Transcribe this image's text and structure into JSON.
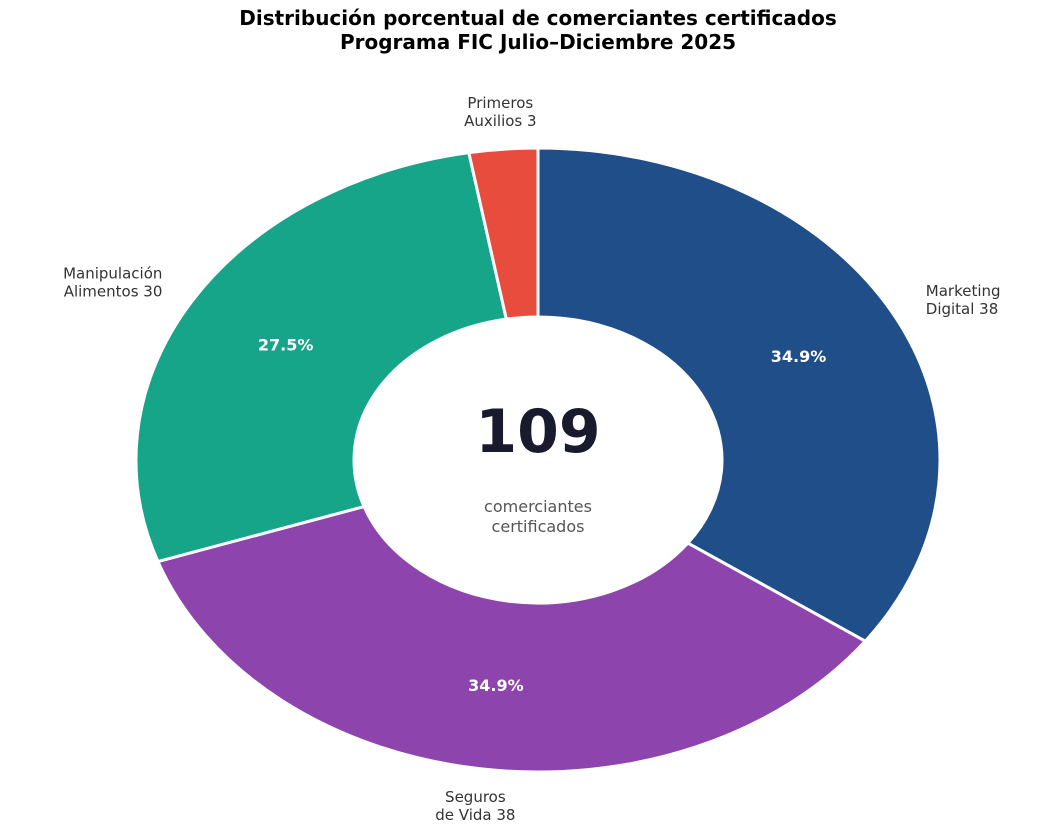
{
  "chart_data": {
    "type": "pie",
    "variant": "donut",
    "title_lines": [
      "Distribución porcentual de comerciantes certificados",
      "Programa FIC Julio–Diciembre 2025"
    ],
    "center": {
      "total": "109",
      "caption_lines": [
        "comerciantes",
        "certificados"
      ]
    },
    "slices": [
      {
        "category": "Marketing Digital",
        "value": 38,
        "label_lines": [
          "Marketing",
          "Digital 38"
        ],
        "percent_label": "34.9%",
        "color": "#1f4e89"
      },
      {
        "category": "Seguros de Vida",
        "value": 38,
        "label_lines": [
          "Seguros",
          "de Vida 38"
        ],
        "percent_label": "34.9%",
        "color": "#8e44ad"
      },
      {
        "category": "Manipulación Alimentos",
        "value": 30,
        "label_lines": [
          "Manipulación",
          "Alimentos 30"
        ],
        "percent_label": "27.5%",
        "color": "#17a589"
      },
      {
        "category": "Primeros Auxilios",
        "value": 3,
        "label_lines": [
          "Primeros",
          "Auxilios 3"
        ],
        "percent_label": "",
        "color": "#e74c3c"
      }
    ],
    "start_angle": "12 o'clock",
    "direction": "clockwise",
    "legend": "none"
  }
}
